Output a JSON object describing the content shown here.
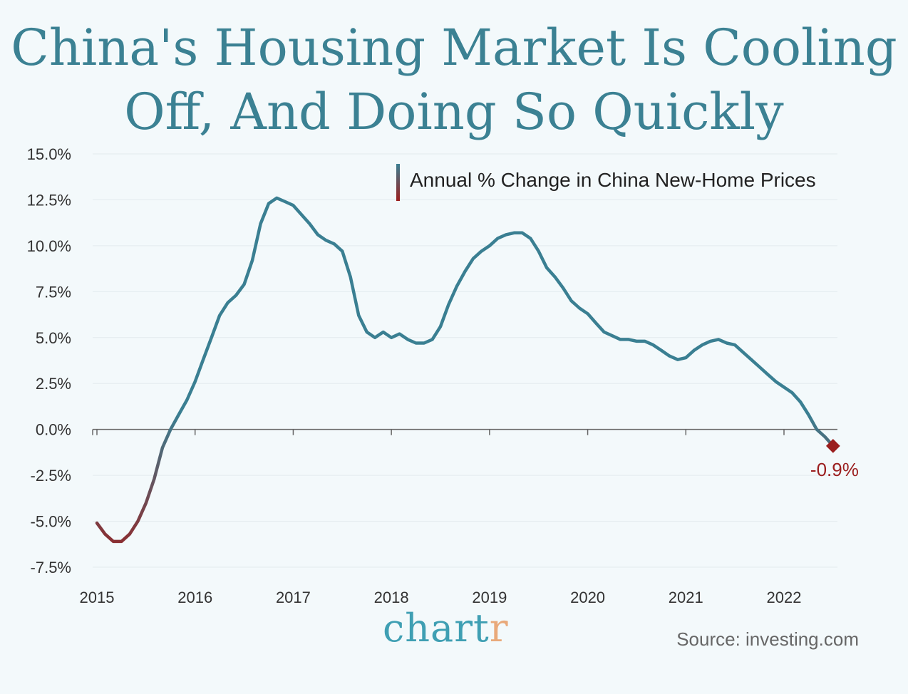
{
  "title_line1": "China's Housing Market Is Cooling",
  "title_line2": "Off, And Doing So Quickly",
  "brand": {
    "name_main": "chart",
    "name_accent": "r",
    "color": "#3f9fb3",
    "accent_color": "#e9a97a"
  },
  "source": "Source: investing.com",
  "colors": {
    "line_high": "#3a7f92",
    "line_low": "#9b1e1e",
    "title": "#3b8193",
    "background": "#f3f9fb"
  },
  "chart_data": {
    "type": "line",
    "title": "China's Housing Market Is Cooling Off, And Doing So Quickly",
    "xlabel": "",
    "ylabel": "",
    "legend": "top-right",
    "legend_label": "Annual % Change in China New-Home Prices",
    "series": [
      {
        "name": "Annual % Change in China New-Home Prices",
        "x": [
          2015.0,
          2015.083,
          2015.167,
          2015.25,
          2015.333,
          2015.417,
          2015.5,
          2015.583,
          2015.667,
          2015.75,
          2015.833,
          2015.917,
          2016.0,
          2016.083,
          2016.167,
          2016.25,
          2016.333,
          2016.417,
          2016.5,
          2016.583,
          2016.667,
          2016.75,
          2016.833,
          2016.917,
          2017.0,
          2017.083,
          2017.167,
          2017.25,
          2017.333,
          2017.417,
          2017.5,
          2017.583,
          2017.667,
          2017.75,
          2017.833,
          2017.917,
          2018.0,
          2018.083,
          2018.167,
          2018.25,
          2018.333,
          2018.417,
          2018.5,
          2018.583,
          2018.667,
          2018.75,
          2018.833,
          2018.917,
          2019.0,
          2019.083,
          2019.167,
          2019.25,
          2019.333,
          2019.417,
          2019.5,
          2019.583,
          2019.667,
          2019.75,
          2019.833,
          2019.917,
          2020.0,
          2020.083,
          2020.167,
          2020.25,
          2020.333,
          2020.417,
          2020.5,
          2020.583,
          2020.667,
          2020.75,
          2020.833,
          2020.917,
          2021.0,
          2021.083,
          2021.167,
          2021.25,
          2021.333,
          2021.417,
          2021.5,
          2021.583,
          2021.667,
          2021.75,
          2021.833,
          2021.917,
          2022.0,
          2022.083,
          2022.167,
          2022.25,
          2022.333,
          2022.417,
          2022.5
        ],
        "values": [
          -5.1,
          -5.7,
          -6.1,
          -6.1,
          -5.7,
          -5.0,
          -4.0,
          -2.7,
          -1.0,
          0.0,
          0.8,
          1.6,
          2.6,
          3.8,
          5.0,
          6.2,
          6.9,
          7.3,
          7.9,
          9.2,
          11.2,
          12.3,
          12.6,
          12.4,
          12.2,
          11.7,
          11.2,
          10.6,
          10.3,
          10.1,
          9.7,
          8.3,
          6.2,
          5.3,
          5.0,
          5.3,
          5.0,
          5.2,
          4.9,
          4.7,
          4.7,
          4.9,
          5.6,
          6.8,
          7.8,
          8.6,
          9.3,
          9.7,
          10.0,
          10.4,
          10.6,
          10.7,
          10.7,
          10.4,
          9.7,
          8.8,
          8.3,
          7.7,
          7.0,
          6.6,
          6.3,
          5.8,
          5.3,
          5.1,
          4.9,
          4.9,
          4.8,
          4.8,
          4.6,
          4.3,
          4.0,
          3.8,
          3.9,
          4.3,
          4.6,
          4.8,
          4.9,
          4.7,
          4.6,
          4.2,
          3.8,
          3.4,
          3.0,
          2.6,
          2.3,
          2.0,
          1.5,
          0.8,
          0.0,
          -0.4,
          -0.9
        ]
      }
    ],
    "xlim": [
      2015.0,
      2022.6
    ],
    "ylim": [
      -7.5,
      15.0
    ],
    "x_ticks": [
      2015,
      2016,
      2017,
      2018,
      2019,
      2020,
      2021,
      2022
    ],
    "x_tick_labels": [
      "2015",
      "2016",
      "2017",
      "2018",
      "2019",
      "2020",
      "2021",
      "2022"
    ],
    "y_ticks": [
      15.0,
      12.5,
      10.0,
      7.5,
      5.0,
      2.5,
      0.0,
      -2.5,
      -5.0,
      -7.5
    ],
    "y_tick_labels": [
      "15.0%",
      "12.5%",
      "10.0%",
      "7.5%",
      "5.0%",
      "2.5%",
      "0.0%",
      "-2.5%",
      "-5.0%",
      "-7.5%"
    ],
    "grid": true,
    "annotation": {
      "x": 2022.5,
      "y": -0.9,
      "text": "-0.9%"
    }
  }
}
